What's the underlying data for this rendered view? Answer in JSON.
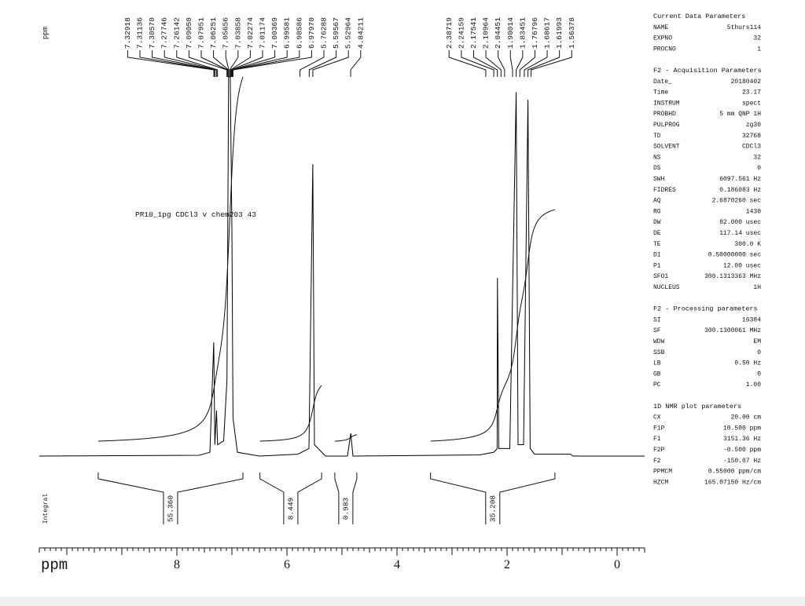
{
  "chart_data": {
    "type": "line",
    "annotation": "PR10_1pg CDCl3 v chem203 43",
    "peak_axis_label": "ppm",
    "integral_label": "Integral",
    "xlabel": "ppm",
    "xlim": [
      10.5,
      -0.5
    ],
    "xticks": [
      8,
      6,
      4,
      2,
      0
    ],
    "ylim": [
      0,
      100
    ],
    "color": "#000000",
    "x": [
      10.5,
      7.6,
      7.4,
      7.33,
      7.31,
      7.28,
      7.26,
      7.15,
      7.09,
      7.06,
      7.03,
      7.0,
      6.98,
      6.9,
      6.5,
      5.8,
      5.6,
      5.53,
      5.5,
      5.3,
      4.9,
      4.84,
      4.8,
      2.5,
      2.24,
      2.18,
      2.175,
      2.15,
      1.95,
      1.83451,
      1.8,
      1.7,
      1.62,
      1.58,
      1.5,
      0.85,
      0.8,
      -0.5
    ],
    "values": [
      0,
      0.2,
      1,
      30,
      3,
      12,
      3,
      4,
      20,
      100,
      100,
      60,
      10,
      1,
      0,
      0.5,
      2,
      77,
      3,
      0,
      0,
      6,
      0,
      0.3,
      1,
      2,
      47,
      2,
      2,
      96,
      3,
      3,
      94,
      2,
      0.5,
      0.5,
      0,
      0
    ],
    "peaks": [
      7.32918,
      7.31136,
      {
        "value": 7.3057,
        "label": "7.30570"
      },
      7.27746,
      7.26142,
      {
        "value": 7.0905,
        "label": "7.09050"
      },
      7.07951,
      7.06251,
      7.05656,
      7.03858,
      7.02274,
      7.01174,
      7.00369,
      6.99581,
      6.98586,
      {
        "value": 6.9797,
        "label": "6.97970"
      },
      5.76288,
      5.59567,
      5.52964,
      4.84211,
      2.38719,
      2.24159,
      2.17541,
      2.10964,
      2.04451,
      1.90014,
      1.83451,
      1.76796,
      1.68617,
      1.61993,
      1.56378
    ],
    "integrals": [
      {
        "value": 55.36,
        "label": "55.360",
        "range": [
          9.43,
          6.8
        ]
      },
      {
        "value": 8.449,
        "range": [
          6.49,
          5.37
        ]
      },
      {
        "value": 0.983,
        "range": [
          5.13,
          4.73
        ]
      },
      {
        "value": 35.208,
        "range": [
          3.39,
          1.13
        ]
      }
    ]
  },
  "parameters": [
    {
      "title": "Current Data Parameters",
      "rows": [
        [
          "NAME",
          "5thurs114"
        ],
        [
          "EXPNO",
          "32"
        ],
        [
          "PROCNO",
          "1"
        ]
      ]
    },
    {
      "title": "F2 - Acquisition Parameters",
      "rows": [
        [
          "Date_",
          "20180402"
        ],
        [
          "Time",
          "23.17"
        ],
        [
          "INSTRUM",
          "spect"
        ],
        [
          "PROBHD",
          "5 mm QNP 1H"
        ],
        [
          "PULPROG",
          "zg30"
        ],
        [
          "TD",
          "32768"
        ],
        [
          "SOLVENT",
          "CDCl3"
        ],
        [
          "NS",
          "32"
        ],
        [
          "DS",
          "0"
        ],
        [
          "SWH",
          "6097.561 Hz"
        ],
        [
          "FIDRES",
          "0.186083 Hz"
        ],
        [
          "AQ",
          "2.6870260 sec"
        ],
        [
          "RG",
          "1430"
        ],
        [
          "DW",
          "82.000 usec"
        ],
        [
          "DE",
          "117.14 usec"
        ],
        [
          "TE",
          "300.0 K"
        ],
        [
          "D1",
          "0.50000000 sec"
        ],
        [
          "P1",
          "12.00 usec"
        ],
        [
          "SFO1",
          "300.1313363 MHz"
        ],
        [
          "NUCLEUS",
          "1H"
        ]
      ]
    },
    {
      "title": "F2 - Processing parameters",
      "rows": [
        [
          "SI",
          "16384"
        ],
        [
          "SF",
          "300.1300061 MHz"
        ],
        [
          "WDW",
          "EM"
        ],
        [
          "SSB",
          "0"
        ],
        [
          "LB",
          "0.50 Hz"
        ],
        [
          "GB",
          "0"
        ],
        [
          "PC",
          "1.00"
        ]
      ]
    },
    {
      "title": "1D NMR plot parameters",
      "rows": [
        [
          "CX",
          "20.00 cm"
        ],
        [
          "F1P",
          "10.500 ppm"
        ],
        [
          "F1",
          "3151.36 Hz"
        ],
        [
          "F2P",
          "-0.500 ppm"
        ],
        [
          "F2",
          "-150.07 Hz"
        ],
        [
          "PPMCM",
          "0.55000 ppm/cm"
        ],
        [
          "HZCM",
          "165.07150 Hz/cm"
        ]
      ]
    }
  ]
}
